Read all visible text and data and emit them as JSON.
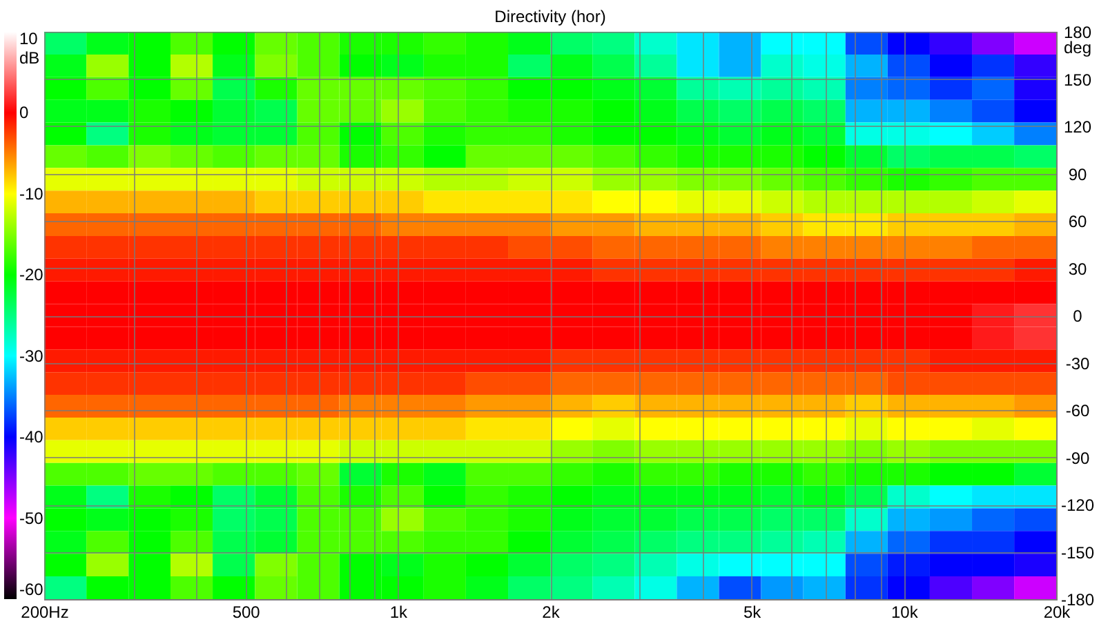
{
  "chart_data": {
    "type": "heatmap",
    "title": "Directivity (hor)",
    "ylabel": "deg",
    "clabel": "dB",
    "x": [
      220,
      267,
      323,
      391,
      474,
      575,
      696,
      843,
      1022,
      1238,
      1500,
      1818,
      2202,
      2668,
      3232,
      3916,
      4745,
      5749,
      6965,
      8438,
      10224,
      12387,
      15007,
      18182
    ],
    "xlim": [
      200,
      20000
    ],
    "xticks": [
      {
        "value": 200,
        "label": "200Hz"
      },
      {
        "value": 300,
        "label": null
      },
      {
        "value": 400,
        "label": null
      },
      500,
      {
        "value": 600,
        "label": null
      },
      {
        "value": 700,
        "label": null
      },
      {
        "value": 800,
        "label": null
      },
      {
        "value": 900,
        "label": null
      },
      {
        "value": 1000,
        "label": "1k"
      },
      {
        "value": 2000,
        "label": "2k"
      },
      {
        "value": 3000,
        "label": null
      },
      {
        "value": 4000,
        "label": null
      },
      {
        "value": 5000,
        "label": "5k"
      },
      {
        "value": 6000,
        "label": null
      },
      {
        "value": 7000,
        "label": null
      },
      {
        "value": 8000,
        "label": null
      },
      {
        "value": 9000,
        "label": null
      },
      {
        "value": 10000,
        "label": "10k"
      },
      {
        "value": 20000,
        "label": "20k"
      }
    ],
    "log": "x",
    "ylim": [
      -180,
      180
    ],
    "yticks": [
      180,
      150,
      120,
      90,
      60,
      30,
      0,
      -30,
      -60,
      -90,
      -120,
      -150,
      -180
    ],
    "cells": [
      [
        -24,
        -21,
        -20,
        -17,
        -20,
        -16,
        -17,
        -19,
        -19,
        -18,
        -19,
        -21,
        -24,
        -25,
        -28,
        -31,
        -33,
        -30,
        -30,
        -37,
        -40,
        -42,
        -45,
        -48
      ],
      [
        -21,
        -14,
        -20,
        -13,
        -21,
        -15,
        -17,
        -20,
        -21,
        -19,
        -19,
        -24,
        -21,
        -23,
        -26,
        -31,
        -33,
        -28,
        -29,
        -33,
        -37,
        -40,
        -38,
        -42
      ],
      [
        -20,
        -17,
        -20,
        -16,
        -23,
        -19,
        -16,
        -16,
        -16,
        -17,
        -18,
        -20,
        -20,
        -21,
        -22,
        -26,
        -27,
        -26,
        -27,
        -35,
        -36,
        -38,
        -36,
        -41
      ],
      [
        -21,
        -21,
        -19,
        -20,
        -22,
        -23,
        -16,
        -16,
        -14,
        -17,
        -18,
        -19,
        -19,
        -20,
        -21,
        -23,
        -24,
        -23,
        -24,
        -33,
        -33,
        -35,
        -37,
        -40
      ],
      [
        -20,
        -25,
        -19,
        -21,
        -22,
        -22,
        -17,
        -20,
        -17,
        -19,
        -18,
        -18,
        -19,
        -20,
        -20,
        -21,
        -22,
        -21,
        -22,
        -29,
        -29,
        -30,
        -32,
        -35
      ],
      [
        -16,
        -17,
        -15,
        -16,
        -17,
        -16,
        -16,
        -19,
        -18,
        -20,
        -16,
        -16,
        -16,
        -17,
        -18,
        -19,
        -19,
        -19,
        -20,
        -22,
        -24,
        -23,
        -23,
        -24
      ],
      [
        -11,
        -11,
        -11,
        -11,
        -11,
        -11,
        -12,
        -12,
        -12,
        -13,
        -13,
        -12,
        -12,
        -14,
        -14,
        -15,
        -15,
        -16,
        -17,
        -18,
        -19,
        -18,
        -17,
        -17
      ],
      [
        -7,
        -7,
        -7,
        -7,
        -7,
        -8,
        -8,
        -8,
        -8,
        -9,
        -9,
        -9,
        -9,
        -10,
        -10,
        -11,
        -11,
        -12,
        -13,
        -13,
        -13,
        -13,
        -12,
        -11
      ],
      [
        -4,
        -4,
        -4,
        -4,
        -4,
        -4,
        -4,
        -4,
        -5,
        -5,
        -5,
        -5,
        -6,
        -6,
        -7,
        -7,
        -7,
        -8,
        -9,
        -9,
        -8,
        -8,
        -8,
        -7
      ],
      [
        -2,
        -2,
        -2,
        -2,
        -2,
        -2,
        -2,
        -2,
        -2,
        -2,
        -2,
        -3,
        -3,
        -4,
        -4,
        -4,
        -4,
        -5,
        -5,
        -5,
        -5,
        -5,
        -4,
        -4
      ],
      [
        -1,
        -1,
        -1,
        -1,
        -1,
        -1,
        -1,
        -1,
        -1,
        -1,
        -1,
        -1,
        -1,
        -2,
        -2,
        -2,
        -2,
        -2,
        -2,
        -2,
        -2,
        -2,
        -2,
        -1
      ],
      [
        0,
        0,
        0,
        0,
        0,
        0,
        0,
        0,
        0,
        0,
        0,
        0,
        0,
        0,
        0,
        0,
        0,
        0,
        0,
        0,
        0,
        0,
        0,
        0
      ],
      [
        0,
        0,
        0,
        0,
        0,
        0,
        0,
        0,
        0,
        0,
        0,
        0,
        0,
        0,
        0,
        0,
        0,
        0,
        0,
        0,
        0,
        0,
        1,
        2
      ],
      [
        0,
        0,
        0,
        0,
        0,
        0,
        0,
        0,
        0,
        0,
        0,
        0,
        0,
        0,
        0,
        0,
        0,
        0,
        0,
        0,
        0,
        0,
        1,
        2
      ],
      [
        -1,
        -1,
        -1,
        -1,
        -1,
        -1,
        -1,
        -1,
        -1,
        -1,
        -1,
        -1,
        -2,
        -2,
        -2,
        -2,
        -2,
        -2,
        -2,
        -2,
        -2,
        -1,
        -1,
        -1
      ],
      [
        -2,
        -2,
        -2,
        -2,
        -2,
        -2,
        -2,
        -2,
        -2,
        -2,
        -3,
        -3,
        -4,
        -4,
        -4,
        -4,
        -4,
        -4,
        -4,
        -4,
        -3,
        -3,
        -3,
        -3
      ],
      [
        -4,
        -4,
        -4,
        -4,
        -4,
        -4,
        -4,
        -5,
        -5,
        -5,
        -6,
        -6,
        -7,
        -8,
        -7,
        -7,
        -7,
        -7,
        -7,
        -8,
        -7,
        -7,
        -7,
        -6
      ],
      [
        -8,
        -8,
        -8,
        -8,
        -8,
        -8,
        -8,
        -8,
        -8,
        -8,
        -9,
        -9,
        -10,
        -11,
        -10,
        -10,
        -10,
        -10,
        -10,
        -11,
        -10,
        -10,
        -11,
        -10
      ],
      [
        -11,
        -11,
        -11,
        -11,
        -11,
        -11,
        -11,
        -12,
        -12,
        -12,
        -12,
        -12,
        -14,
        -15,
        -14,
        -14,
        -14,
        -14,
        -14,
        -15,
        -14,
        -15,
        -15,
        -15
      ],
      [
        -17,
        -17,
        -16,
        -16,
        -17,
        -17,
        -16,
        -22,
        -19,
        -21,
        -17,
        -17,
        -18,
        -19,
        -18,
        -18,
        -19,
        -19,
        -18,
        -19,
        -19,
        -20,
        -20,
        -22
      ],
      [
        -21,
        -25,
        -19,
        -20,
        -24,
        -22,
        -17,
        -19,
        -17,
        -20,
        -18,
        -19,
        -20,
        -21,
        -21,
        -21,
        -21,
        -22,
        -21,
        -23,
        -28,
        -30,
        -31,
        -31
      ],
      [
        -20,
        -21,
        -20,
        -19,
        -24,
        -23,
        -17,
        -17,
        -14,
        -17,
        -18,
        -19,
        -21,
        -22,
        -22,
        -23,
        -23,
        -24,
        -24,
        -28,
        -33,
        -34,
        -36,
        -37
      ],
      [
        -21,
        -17,
        -20,
        -17,
        -23,
        -22,
        -17,
        -17,
        -17,
        -18,
        -18,
        -20,
        -22,
        -23,
        -24,
        -25,
        -25,
        -26,
        -27,
        -33,
        -36,
        -38,
        -38,
        -40
      ],
      [
        -20,
        -14,
        -20,
        -13,
        -23,
        -15,
        -17,
        -20,
        -21,
        -19,
        -20,
        -22,
        -24,
        -25,
        -27,
        -29,
        -30,
        -30,
        -30,
        -37,
        -39,
        -40,
        -40,
        -41
      ],
      [
        -25,
        -20,
        -20,
        -17,
        -20,
        -16,
        -17,
        -20,
        -20,
        -19,
        -21,
        -24,
        -25,
        -27,
        -29,
        -33,
        -37,
        -34,
        -33,
        -38,
        -40,
        -43,
        -45,
        -48
      ]
    ],
    "clim": [
      -60,
      10
    ],
    "cticks": [
      10,
      0,
      -10,
      -20,
      -30,
      -40,
      -50,
      -60
    ],
    "grid": true
  }
}
